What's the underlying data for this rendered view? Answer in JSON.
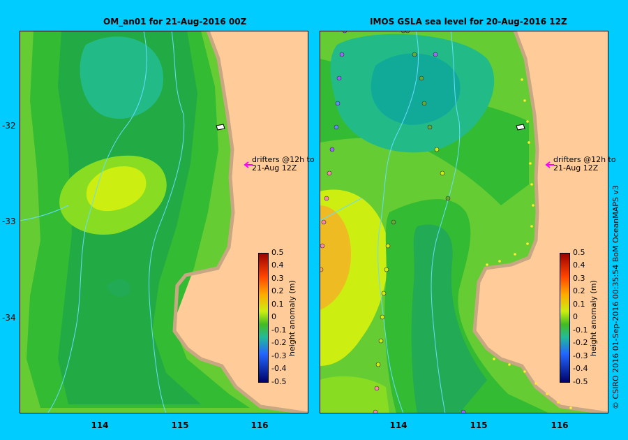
{
  "panels": [
    {
      "title": "OM_an01  for 21-Aug-2016 00Z",
      "drifter_note": [
        "drifters @12h to",
        "21-Aug 12Z"
      ]
    },
    {
      "title": "IMOS GSLA sea level  for 20-Aug-2016 12Z",
      "drifter_note": [
        "drifters @12h to",
        "21-Aug 12Z"
      ]
    }
  ],
  "lat_ticks": [
    "-32",
    "-33",
    "-34"
  ],
  "lon_ticks": [
    "114",
    "115",
    "116"
  ],
  "colorbar": {
    "label": "height anomaly (m)",
    "ticks": [
      "0.5",
      "0.4",
      "0.3",
      "0.2",
      "0.1",
      "0",
      "-0.1",
      "-0.2",
      "-0.3",
      "-0.4",
      "-0.5"
    ]
  },
  "credit": "© CSIRO 2016   01-Sep-2016 00:35:54 BoM OceanMAPS v3",
  "colors": {
    "background": "#00ccff",
    "land": "#ffcc99",
    "coast": "#c8a883",
    "arrow": "#ff00ff",
    "contour": "#66ddff"
  }
}
